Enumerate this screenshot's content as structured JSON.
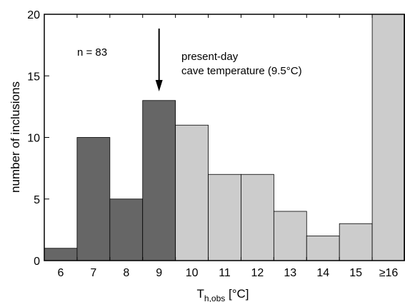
{
  "chart_data": {
    "type": "bar",
    "categories": [
      "6",
      "7",
      "8",
      "9",
      "10",
      "11",
      "12",
      "13",
      "14",
      "15",
      "≥16"
    ],
    "values": [
      1,
      10,
      5,
      13,
      11,
      7,
      7,
      4,
      2,
      3,
      20
    ],
    "bar_colors": [
      "#666666",
      "#666666",
      "#666666",
      "#666666",
      "#cccccc",
      "#cccccc",
      "#cccccc",
      "#cccccc",
      "#cccccc",
      "#cccccc",
      "#cccccc"
    ],
    "ylim": [
      0,
      20
    ],
    "yticks": [
      "0",
      "5",
      "10",
      "15",
      "20"
    ],
    "ylabel": "number of inclusions",
    "xlabel_main": "T",
    "xlabel_sub": "h,obs",
    "xlabel_unit": " [°C]",
    "annotations": {
      "sample_size": "n = 83",
      "arrow_line1": "present-day",
      "arrow_line2": "cave temperature (9.5°C)",
      "arrow_x": 9.5
    }
  }
}
